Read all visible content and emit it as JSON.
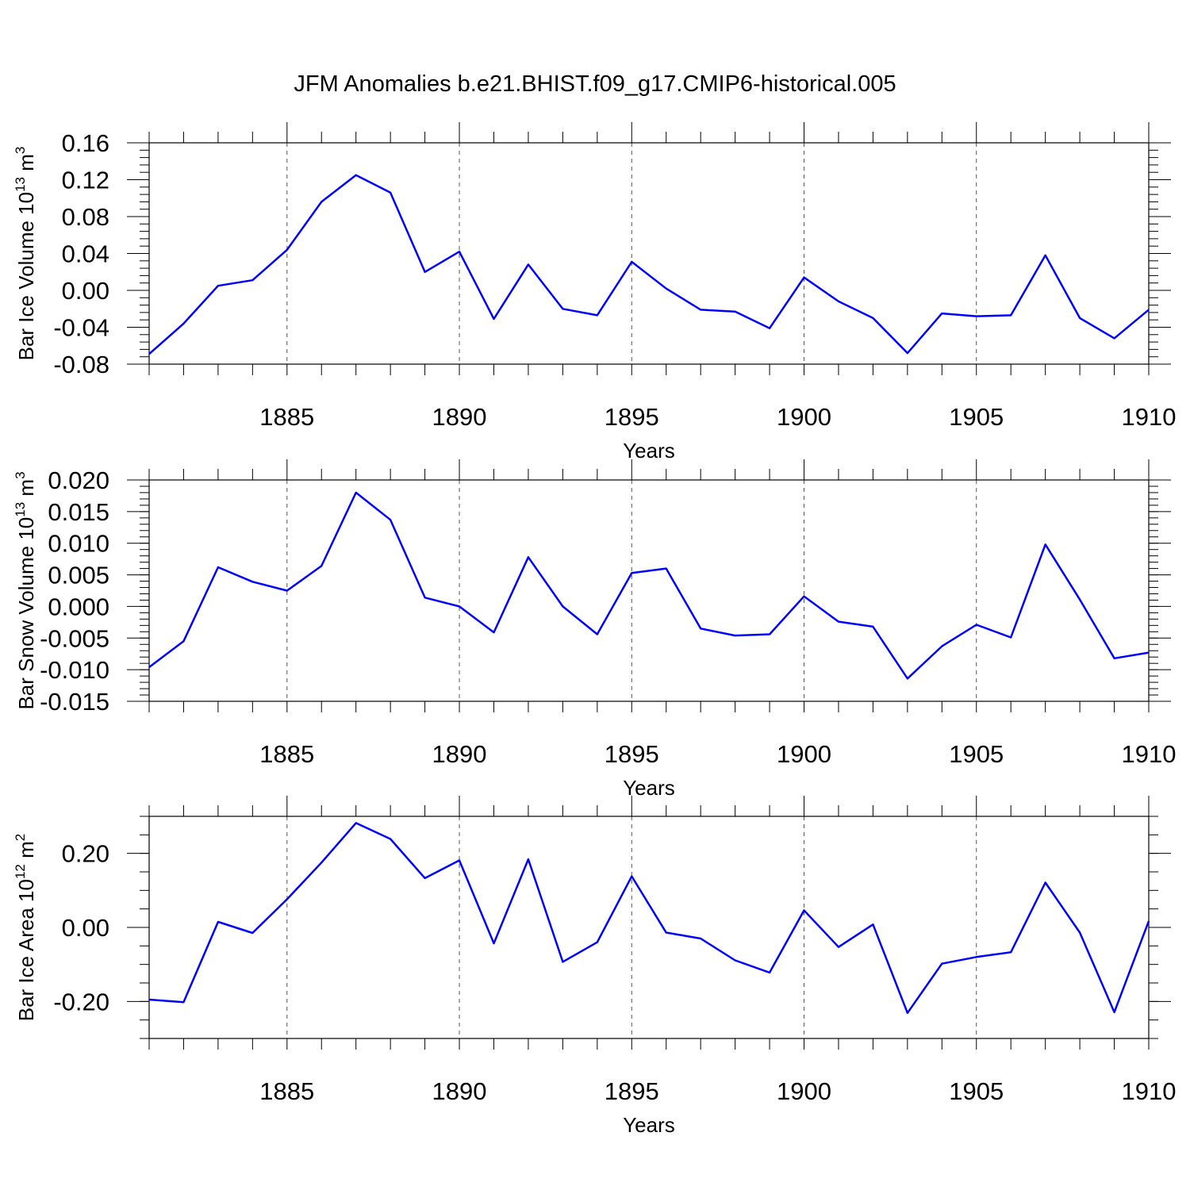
{
  "title": "JFM Anomalies b.e21.BHIST.f09_g17.CMIP6-historical.005",
  "chart_data": [
    {
      "type": "line",
      "xlabel": "Years",
      "ylabel_base": "Bar Ice Volume 10",
      "ylabel_exp": "13",
      "ylabel_unit": " m",
      "ylabel_unit_exp": "3",
      "xlim": [
        1881,
        1910
      ],
      "ylim": [
        -0.08,
        0.16
      ],
      "yticks": [
        -0.08,
        -0.04,
        0.0,
        0.04,
        0.08,
        0.12,
        0.16
      ],
      "yticklabels": [
        "-0.08",
        "-0.04",
        "0.00",
        "0.04",
        "0.08",
        "0.12",
        "0.16"
      ],
      "yminor_step": 0.008,
      "xticks": [
        1885,
        1890,
        1895,
        1900,
        1905,
        1910
      ],
      "xticklabels": [
        "1885",
        "1890",
        "1895",
        "1900",
        "1905",
        "1910"
      ],
      "x": [
        1881,
        1882,
        1883,
        1884,
        1885,
        1886,
        1887,
        1888,
        1889,
        1890,
        1891,
        1892,
        1893,
        1894,
        1895,
        1896,
        1897,
        1898,
        1899,
        1900,
        1901,
        1902,
        1903,
        1904,
        1905,
        1906,
        1907,
        1908,
        1909,
        1910
      ],
      "values": [
        -0.069,
        -0.036,
        0.005,
        0.011,
        0.044,
        0.096,
        0.125,
        0.106,
        0.02,
        0.042,
        -0.031,
        0.028,
        -0.02,
        -0.027,
        0.031,
        0.002,
        -0.021,
        -0.023,
        -0.041,
        0.014,
        -0.012,
        -0.03,
        -0.068,
        -0.025,
        -0.028,
        -0.027,
        0.038,
        -0.03,
        -0.052,
        -0.021
      ]
    },
    {
      "type": "line",
      "xlabel": "Years",
      "ylabel_base": "Bar Snow Volume 10",
      "ylabel_exp": "13",
      "ylabel_unit": " m",
      "ylabel_unit_exp": "3",
      "xlim": [
        1881,
        1910
      ],
      "ylim": [
        -0.015,
        0.02
      ],
      "yticks": [
        -0.015,
        -0.01,
        -0.005,
        0.0,
        0.005,
        0.01,
        0.015,
        0.02
      ],
      "yticklabels": [
        "-0.015",
        "-0.010",
        "-0.005",
        "0.000",
        "0.005",
        "0.010",
        "0.015",
        "0.020"
      ],
      "yminor_step": 0.001,
      "xticks": [
        1885,
        1890,
        1895,
        1900,
        1905,
        1910
      ],
      "xticklabels": [
        "1885",
        "1890",
        "1895",
        "1900",
        "1905",
        "1910"
      ],
      "x": [
        1881,
        1882,
        1883,
        1884,
        1885,
        1886,
        1887,
        1888,
        1889,
        1890,
        1891,
        1892,
        1893,
        1894,
        1895,
        1896,
        1897,
        1898,
        1899,
        1900,
        1901,
        1902,
        1903,
        1904,
        1905,
        1906,
        1907,
        1908,
        1909,
        1910
      ],
      "values": [
        -0.0096,
        -0.0055,
        0.0062,
        0.0039,
        0.0025,
        0.0064,
        0.018,
        0.0137,
        0.0014,
        0.0,
        -0.0041,
        0.0078,
        0.0,
        -0.0044,
        0.0053,
        0.006,
        -0.0035,
        -0.0046,
        -0.0044,
        0.0016,
        -0.0024,
        -0.0032,
        -0.0114,
        -0.0063,
        -0.0029,
        -0.0049,
        0.0098,
        0.0011,
        -0.0082,
        -0.0073
      ]
    },
    {
      "type": "line",
      "xlabel": "Years",
      "ylabel_base": "Bar Ice Area 10",
      "ylabel_exp": "12",
      "ylabel_unit": " m",
      "ylabel_unit_exp": "2",
      "xlim": [
        1881,
        1910
      ],
      "ylim": [
        -0.3,
        0.3
      ],
      "yticks": [
        -0.2,
        0.0,
        0.2
      ],
      "yticklabels": [
        "-0.20",
        "0.00",
        "0.20"
      ],
      "yminor_step": 0.05,
      "xticks": [
        1885,
        1890,
        1895,
        1900,
        1905,
        1910
      ],
      "xticklabels": [
        "1885",
        "1890",
        "1895",
        "1900",
        "1905",
        "1910"
      ],
      "x": [
        1881,
        1882,
        1883,
        1884,
        1885,
        1886,
        1887,
        1888,
        1889,
        1890,
        1891,
        1892,
        1893,
        1894,
        1895,
        1896,
        1897,
        1898,
        1899,
        1900,
        1901,
        1902,
        1903,
        1904,
        1905,
        1906,
        1907,
        1908,
        1909,
        1910
      ],
      "values": [
        -0.195,
        -0.202,
        0.015,
        -0.015,
        0.076,
        0.175,
        0.282,
        0.239,
        0.133,
        0.181,
        -0.043,
        0.184,
        -0.093,
        -0.04,
        0.138,
        -0.014,
        -0.03,
        -0.089,
        -0.122,
        0.046,
        -0.053,
        0.008,
        -0.231,
        -0.098,
        -0.08,
        -0.067,
        0.121,
        -0.014,
        -0.229,
        0.017
      ]
    }
  ]
}
